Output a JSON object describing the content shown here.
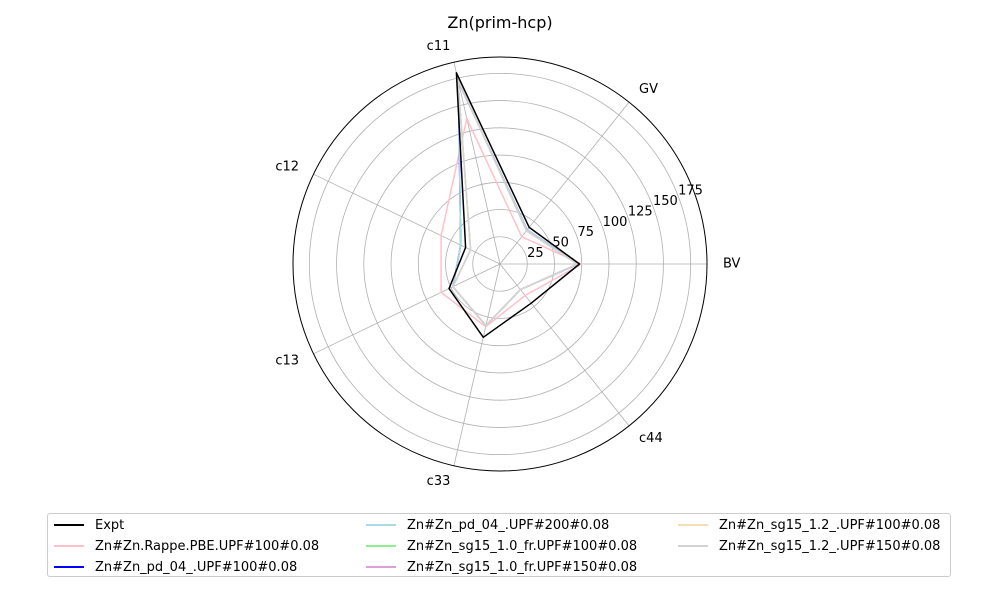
{
  "chart_data": {
    "type": "radar",
    "title": "Zn(prim-hcp)",
    "axes": [
      "BV",
      "GV",
      "c11",
      "c12",
      "c13",
      "c33",
      "c44"
    ],
    "rlim": [
      0,
      190
    ],
    "rticks": [
      25,
      50,
      75,
      100,
      125,
      150,
      175
    ],
    "grid": true,
    "legend_position": "bottom",
    "series": [
      {
        "name": "Expt",
        "color": "#000000",
        "values": [
          73,
          43,
          180,
          35,
          52,
          69,
          46
        ]
      },
      {
        "name": "Zn#Zn.Rappe.PBE.UPF#100#0.08",
        "color": "#ffc0cb",
        "values": [
          75,
          32,
          137,
          60,
          60,
          59,
          37
        ]
      },
      {
        "name": "Zn#Zn_pd_04_.UPF#100#0.08",
        "color": "#0000ff",
        "values": [
          72,
          40,
          172,
          40,
          48,
          58,
          30
        ]
      },
      {
        "name": "Zn#Zn_pd_04_.UPF#200#0.08",
        "color": "#add8e6",
        "values": [
          72,
          40,
          172,
          40,
          48,
          58,
          30
        ]
      },
      {
        "name": "Zn#Zn_sg15_1.0_fr.UPF#100#0.08",
        "color": "#90ee90",
        "values": [
          71,
          39,
          174,
          30,
          48,
          58,
          30
        ]
      },
      {
        "name": "Zn#Zn_sg15_1.0_fr.UPF#150#0.08",
        "color": "#dda0dd",
        "values": [
          71,
          39,
          174,
          30,
          48,
          58,
          30
        ]
      },
      {
        "name": "Zn#Zn_sg15_1.2_.UPF#100#0.08",
        "color": "#f5deb3",
        "values": [
          71,
          39,
          174,
          30,
          48,
          58,
          30
        ]
      },
      {
        "name": "Zn#Zn_sg15_1.2_.UPF#150#0.08",
        "color": "#d3d3d3",
        "values": [
          71,
          39,
          174,
          30,
          48,
          58,
          30
        ]
      }
    ]
  }
}
